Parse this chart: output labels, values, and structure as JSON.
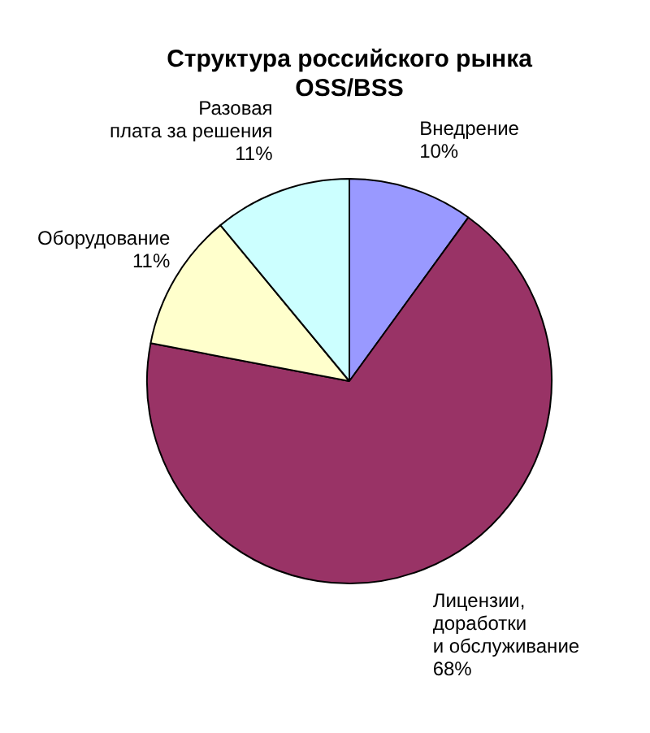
{
  "chart_data": {
    "type": "pie",
    "title": "Структура российского рынка\nOSS/BSS",
    "categories": [
      "Внедрение",
      "Лицензии,\nдоработки\nи обслуживание",
      "Оборудование",
      "Разовая\nплата за решения"
    ],
    "values": [
      10,
      68,
      11,
      11
    ],
    "colors": [
      "#9999ff",
      "#993366",
      "#ffffcc",
      "#ccffff"
    ],
    "value_labels": [
      "10%",
      "68%",
      "11%",
      "11%"
    ],
    "legend": false
  }
}
